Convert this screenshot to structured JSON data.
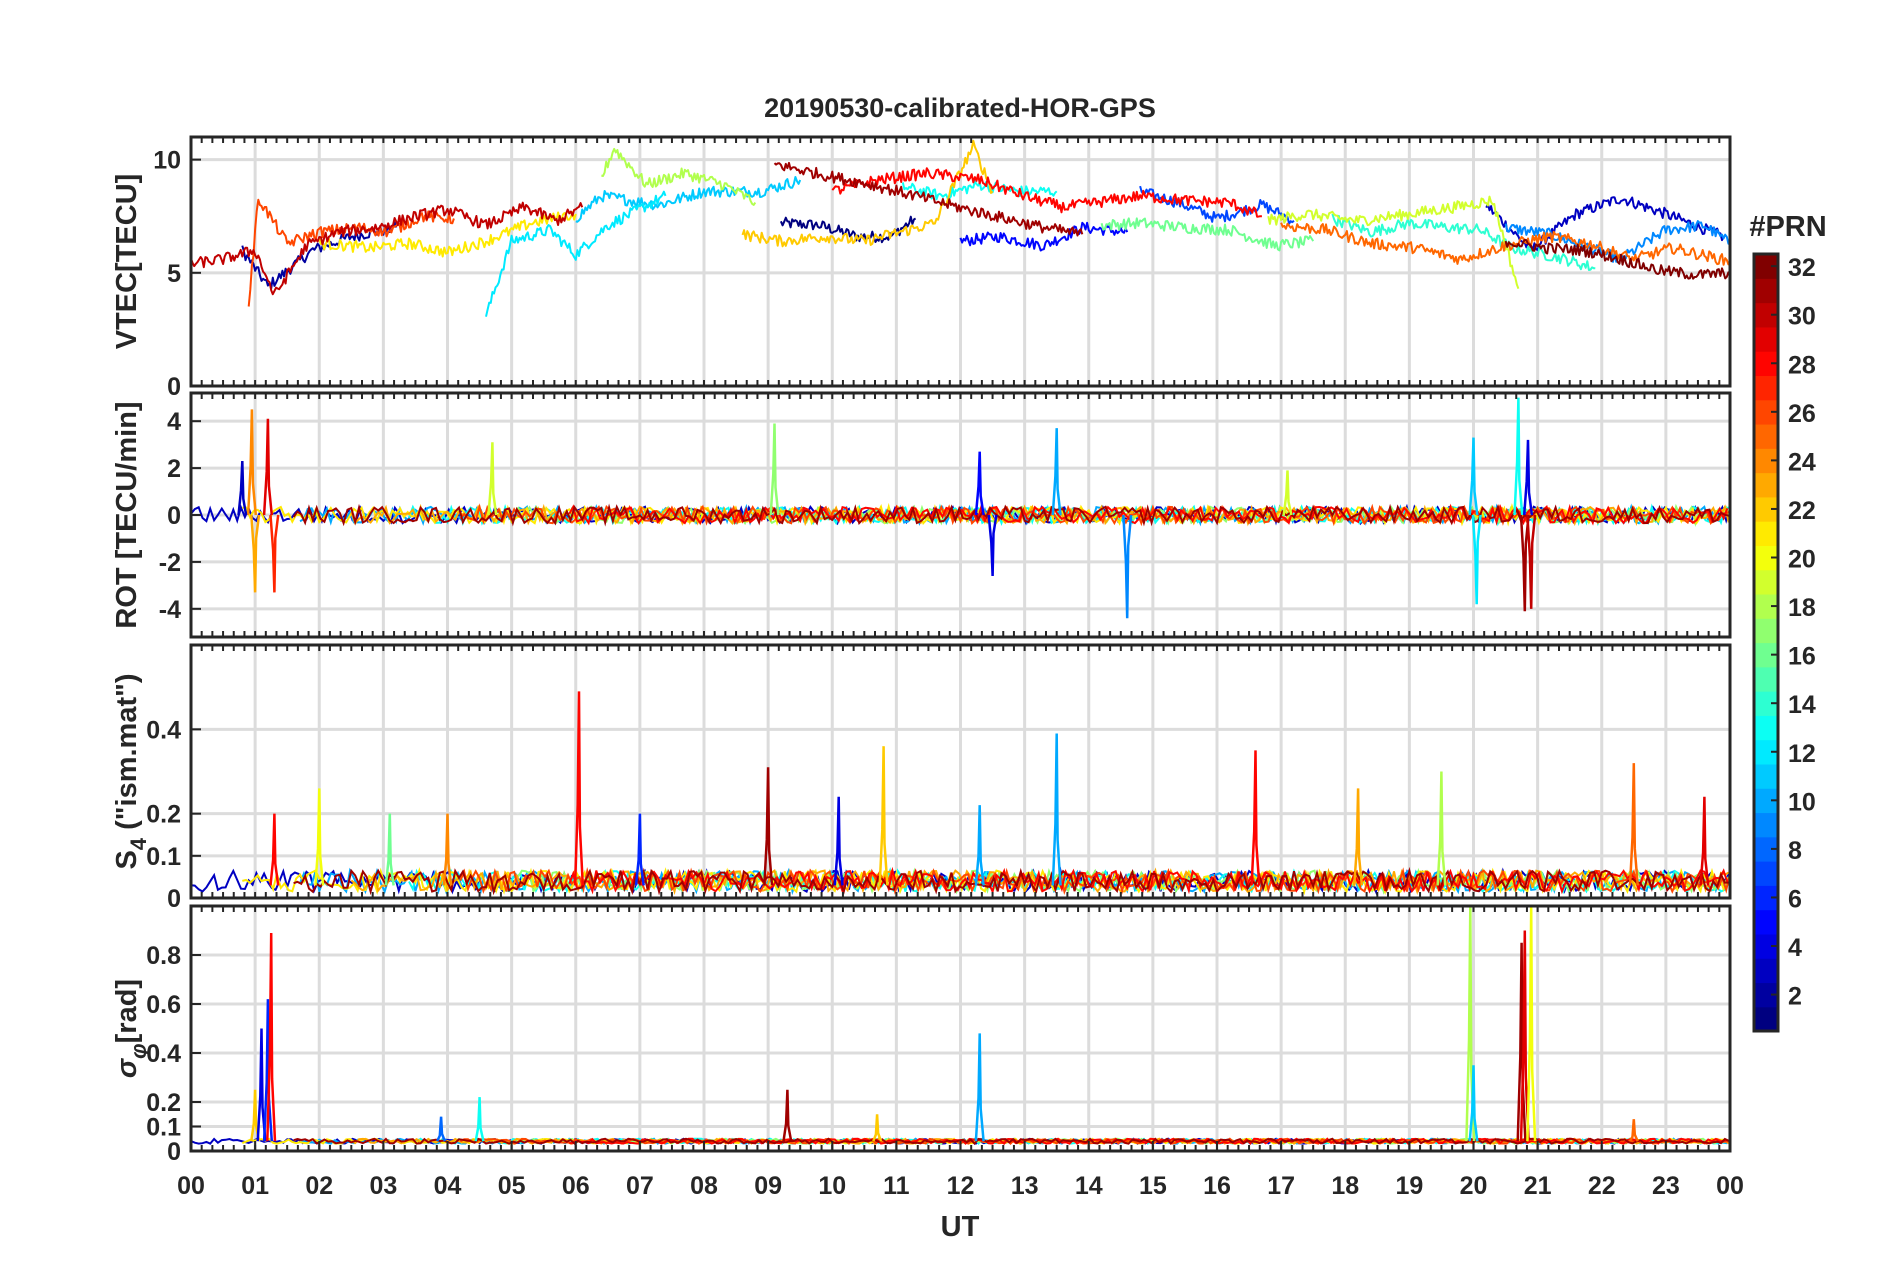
{
  "chart_data": {
    "type": "line",
    "title": "20190530-calibrated-HOR-GPS",
    "xlabel": "UT",
    "x_tick_labels": [
      "00",
      "01",
      "02",
      "03",
      "04",
      "05",
      "06",
      "07",
      "08",
      "09",
      "10",
      "11",
      "12",
      "13",
      "14",
      "15",
      "16",
      "17",
      "18",
      "19",
      "20",
      "21",
      "22",
      "23",
      "00"
    ],
    "xlim": [
      0,
      24
    ],
    "colorbar": {
      "title": "#PRN",
      "range": [
        1,
        32
      ],
      "tick_labels": [
        "2",
        "4",
        "6",
        "8",
        "10",
        "12",
        "14",
        "16",
        "18",
        "20",
        "22",
        "24",
        "26",
        "28",
        "30",
        "32"
      ],
      "colormap": "jet"
    },
    "panels": [
      {
        "id": "vtec",
        "ylabel": "VTEC[TECU]",
        "ylim": [
          0,
          11
        ],
        "yticks": [
          0,
          5,
          10
        ],
        "ytick_labels": [
          "0",
          "5",
          "10"
        ],
        "series": [
          {
            "prn": 1,
            "x": [
              9.2,
              9.8,
              10.4,
              10.9,
              11.3
            ],
            "values": [
              7.2,
              7.1,
              6.6,
              6.6,
              7.4
            ]
          },
          {
            "prn": 2,
            "x": [
              0.8,
              1.2,
              1.9,
              2.5,
              3.2
            ],
            "values": [
              6.0,
              4.4,
              6.0,
              6.6,
              7.0
            ]
          },
          {
            "prn": 3,
            "x": [
              20.2,
              20.9,
              21.6,
              22.3,
              23.0,
              23.9
            ],
            "values": [
              8.0,
              6.0,
              7.6,
              8.3,
              7.6,
              6.6
            ]
          },
          {
            "prn": 5,
            "x": [
              12.0,
              12.6,
              13.3,
              13.9,
              14.6
            ],
            "values": [
              6.4,
              6.6,
              6.2,
              7.0,
              6.8
            ]
          },
          {
            "prn": 7,
            "x": [
              14.8,
              15.4,
              16.0,
              16.7,
              17.2
            ],
            "values": [
              8.6,
              8.1,
              7.4,
              8.0,
              7.3
            ]
          },
          {
            "prn": 9,
            "x": [
              20.5,
              21.2,
              21.8,
              22.3,
              23.0,
              23.6,
              24.0
            ],
            "values": [
              7.0,
              6.7,
              6.1,
              5.6,
              6.9,
              7.1,
              6.3
            ]
          },
          {
            "prn": 11,
            "x": [
              6.0,
              6.4,
              7.3,
              8.0,
              8.9,
              9.5
            ],
            "values": [
              7.4,
              8.4,
              8.0,
              8.6,
              8.6,
              9.1
            ]
          },
          {
            "prn": 12,
            "x": [
              4.6,
              5.0,
              5.6,
              6.0,
              6.5,
              7.4
            ],
            "values": [
              3.1,
              6.4,
              6.9,
              5.8,
              7.1,
              8.4
            ]
          },
          {
            "prn": 13,
            "x": [
              11.1,
              11.7,
              12.3,
              12.9,
              13.5
            ],
            "values": [
              8.8,
              8.4,
              8.9,
              8.6,
              8.6
            ]
          },
          {
            "prn": 14,
            "x": [
              17.8,
              18.4,
              19.0,
              19.6,
              20.1,
              20.6,
              21.3,
              21.9
            ],
            "values": [
              7.4,
              6.8,
              7.2,
              7.0,
              6.9,
              6.1,
              5.7,
              5.2
            ]
          },
          {
            "prn": 16,
            "x": [
              14.2,
              14.8,
              15.5,
              16.2,
              16.9,
              17.5
            ],
            "values": [
              7.1,
              7.2,
              7.0,
              6.9,
              6.2,
              6.4
            ]
          },
          {
            "prn": 18,
            "x": [
              6.4,
              6.6,
              7.1,
              7.7,
              8.3,
              8.8
            ],
            "values": [
              9.2,
              10.5,
              8.9,
              9.4,
              8.9,
              8.1
            ]
          },
          {
            "prn": 19,
            "x": [
              16.8,
              17.4,
              18.2,
              19.0,
              19.7,
              20.3,
              20.7
            ],
            "values": [
              7.3,
              7.6,
              7.3,
              7.6,
              7.9,
              8.2,
              4.3
            ]
          },
          {
            "prn": 21,
            "x": [
              2.0,
              2.8,
              3.4,
              4.0,
              4.6,
              5.3,
              6.0
            ],
            "values": [
              6.3,
              6.1,
              6.3,
              5.9,
              6.4,
              7.2,
              7.6
            ]
          },
          {
            "prn": 22,
            "x": [
              8.6,
              9.2,
              9.9,
              10.5,
              11.2,
              11.6,
              11.9,
              12.2,
              12.5
            ],
            "values": [
              6.7,
              6.4,
              6.6,
              6.4,
              6.9,
              7.2,
              8.9,
              10.6,
              8.6
            ]
          },
          {
            "prn": 25,
            "x": [
              17.0,
              17.7,
              18.4,
              19.1,
              19.8,
              20.5,
              21.2,
              21.8,
              22.5,
              23.1,
              24.0
            ],
            "values": [
              7.1,
              6.9,
              6.3,
              6.1,
              5.6,
              6.2,
              6.6,
              6.3,
              5.6,
              6.1,
              5.5
            ]
          },
          {
            "prn": 26,
            "x": [
              0.9,
              1.05,
              1.5,
              2.0,
              2.6,
              3.1,
              3.6,
              4.1
            ],
            "values": [
              3.6,
              8.3,
              6.3,
              6.8,
              7.0,
              6.8,
              7.5,
              7.4
            ]
          },
          {
            "prn": 28,
            "x": [
              10.0,
              10.7,
              11.5,
              12.3,
              13.1,
              13.6,
              14.1,
              14.8,
              15.5,
              16.2,
              16.7
            ],
            "values": [
              8.6,
              9.1,
              9.4,
              9.1,
              8.3,
              7.9,
              8.1,
              8.4,
              8.2,
              8.1,
              7.5
            ]
          },
          {
            "prn": 30,
            "x": [
              0.0,
              0.5,
              1.0,
              1.3,
              1.8,
              2.3,
              2.9,
              3.5,
              4.0,
              4.6,
              5.2,
              5.7,
              6.1
            ],
            "values": [
              5.4,
              5.6,
              6.0,
              4.0,
              6.2,
              6.8,
              7.0,
              7.5,
              7.8,
              7.1,
              7.9,
              7.3,
              7.9
            ]
          },
          {
            "prn": 31,
            "x": [
              9.1,
              9.9,
              10.6,
              11.3,
              12.1,
              12.7,
              13.3,
              13.9
            ],
            "values": [
              9.8,
              9.3,
              8.9,
              8.4,
              7.8,
              7.4,
              7.0,
              6.7
            ]
          },
          {
            "prn": 32,
            "x": [
              20.5,
              21.1,
              21.7,
              22.3,
              22.9,
              23.5,
              24.0
            ],
            "values": [
              6.4,
              6.1,
              6.0,
              5.6,
              5.1,
              4.9,
              5.0
            ]
          }
        ]
      },
      {
        "id": "rot",
        "ylabel": "ROT [TECU/min]",
        "ylim": [
          -5.2,
          5.2
        ],
        "yticks": [
          -4,
          -2,
          0,
          2,
          4
        ],
        "ytick_labels": [
          "-4",
          "-2",
          "0",
          "2",
          "4"
        ],
        "spikes": [
          {
            "t": 0.95,
            "v": 4.5,
            "prn": 24
          },
          {
            "t": 1.0,
            "v": -3.3,
            "prn": 23
          },
          {
            "t": 1.2,
            "v": 4.1,
            "prn": 29
          },
          {
            "t": 1.3,
            "v": -3.3,
            "prn": 27
          },
          {
            "t": 0.8,
            "v": 2.3,
            "prn": 3
          },
          {
            "t": 4.7,
            "v": 3.1,
            "prn": 19
          },
          {
            "t": 9.1,
            "v": 3.9,
            "prn": 17
          },
          {
            "t": 12.3,
            "v": 2.7,
            "prn": 5
          },
          {
            "t": 12.5,
            "v": -2.6,
            "prn": 4
          },
          {
            "t": 13.5,
            "v": 3.7,
            "prn": 10
          },
          {
            "t": 14.6,
            "v": -4.4,
            "prn": 9
          },
          {
            "t": 17.1,
            "v": 1.9,
            "prn": 19
          },
          {
            "t": 20.0,
            "v": 3.3,
            "prn": 11
          },
          {
            "t": 20.05,
            "v": -3.8,
            "prn": 12
          },
          {
            "t": 20.7,
            "v": 5.0,
            "prn": 13
          },
          {
            "t": 20.8,
            "v": -4.1,
            "prn": 31
          },
          {
            "t": 20.85,
            "v": 3.2,
            "prn": 4
          },
          {
            "t": 20.9,
            "v": -4.0,
            "prn": 30
          }
        ]
      },
      {
        "id": "s4",
        "ylabel": "S4 (\"ism.mat\")",
        "ylabel_parts": {
          "base": "S",
          "sub": "4",
          "rest": " (\"ism.mat\")"
        },
        "ylim": [
          0,
          0.6
        ],
        "yticks": [
          0,
          0.1,
          0.2,
          0.4
        ],
        "ytick_labels": [
          "0",
          "0.1",
          "0.2",
          "0.4"
        ],
        "spikes": [
          {
            "t": 1.3,
            "v": 0.2,
            "prn": 28
          },
          {
            "t": 2.0,
            "v": 0.26,
            "prn": 20
          },
          {
            "t": 3.1,
            "v": 0.2,
            "prn": 16
          },
          {
            "t": 4.0,
            "v": 0.2,
            "prn": 24
          },
          {
            "t": 6.05,
            "v": 0.49,
            "prn": 28
          },
          {
            "t": 7.0,
            "v": 0.2,
            "prn": 6
          },
          {
            "t": 9.0,
            "v": 0.31,
            "prn": 31
          },
          {
            "t": 10.1,
            "v": 0.24,
            "prn": 4
          },
          {
            "t": 10.8,
            "v": 0.36,
            "prn": 22
          },
          {
            "t": 12.3,
            "v": 0.22,
            "prn": 10
          },
          {
            "t": 13.5,
            "v": 0.39,
            "prn": 10
          },
          {
            "t": 16.6,
            "v": 0.35,
            "prn": 28
          },
          {
            "t": 18.2,
            "v": 0.26,
            "prn": 23
          },
          {
            "t": 19.5,
            "v": 0.3,
            "prn": 18
          },
          {
            "t": 22.5,
            "v": 0.32,
            "prn": 25
          },
          {
            "t": 23.6,
            "v": 0.24,
            "prn": 29
          }
        ]
      },
      {
        "id": "sigma_phi",
        "ylabel": "σφ[rad]",
        "ylabel_parts": {
          "base": "σ",
          "sub": "φ",
          "rest": "[rad]"
        },
        "ylim": [
          0,
          1.0
        ],
        "yticks": [
          0,
          0.1,
          0.2,
          0.4,
          0.6,
          0.8
        ],
        "ytick_labels": [
          "0",
          "0.1",
          "0.2",
          "0.4",
          "0.6",
          "0.8"
        ],
        "spikes": [
          {
            "t": 1.0,
            "v": 0.25,
            "prn": 22
          },
          {
            "t": 1.1,
            "v": 0.5,
            "prn": 4
          },
          {
            "t": 1.2,
            "v": 0.62,
            "prn": 6
          },
          {
            "t": 1.25,
            "v": 0.89,
            "prn": 28
          },
          {
            "t": 3.9,
            "v": 0.14,
            "prn": 8
          },
          {
            "t": 4.5,
            "v": 0.22,
            "prn": 13
          },
          {
            "t": 9.3,
            "v": 0.25,
            "prn": 31
          },
          {
            "t": 10.7,
            "v": 0.15,
            "prn": 22
          },
          {
            "t": 12.3,
            "v": 0.48,
            "prn": 10
          },
          {
            "t": 19.95,
            "v": 1.0,
            "prn": 18
          },
          {
            "t": 20.0,
            "v": 0.35,
            "prn": 11
          },
          {
            "t": 20.75,
            "v": 0.85,
            "prn": 31
          },
          {
            "t": 20.8,
            "v": 0.9,
            "prn": 29
          },
          {
            "t": 20.9,
            "v": 1.0,
            "prn": 20
          },
          {
            "t": 22.5,
            "v": 0.13,
            "prn": 25
          }
        ]
      }
    ]
  }
}
